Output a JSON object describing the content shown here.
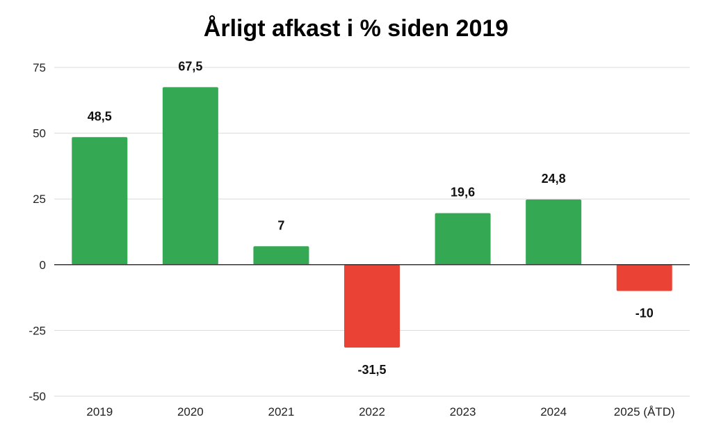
{
  "chart_data": {
    "type": "bar",
    "title": "Årligt afkast i % siden 2019",
    "xlabel": "",
    "ylabel": "",
    "categories": [
      "2019",
      "2020",
      "2021",
      "2022",
      "2023",
      "2024",
      "2025 (ÅTD)"
    ],
    "values": [
      48.5,
      67.5,
      7,
      -31.5,
      19.6,
      24.8,
      -10
    ],
    "data_labels": [
      "48,5",
      "67,5",
      "7",
      "-31,5",
      "19,6",
      "24,8",
      "-10"
    ],
    "ylim": [
      -50,
      75
    ],
    "yticks": [
      -50,
      -25,
      0,
      25,
      50,
      75
    ],
    "ytick_labels": [
      "-50",
      "-25",
      "0",
      "25",
      "50",
      "75"
    ],
    "grid": true,
    "legend": "none",
    "colors": {
      "positive": "#34a853",
      "negative": "#ea4335",
      "grid": "#d9d9d9",
      "zero_line": "#333333"
    }
  }
}
